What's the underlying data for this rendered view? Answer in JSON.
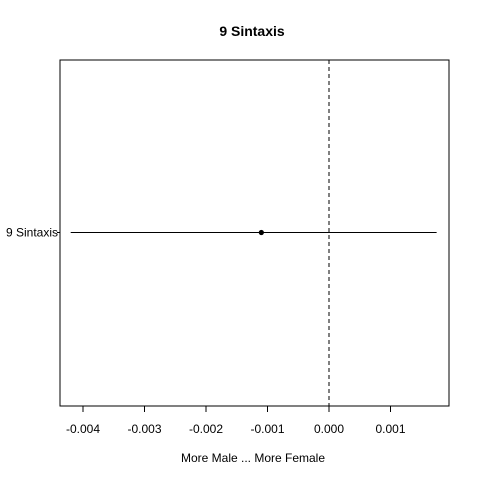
{
  "chart_data": {
    "type": "scatter",
    "title": "9 Sintaxis",
    "xlabel": "More Male ... More Female",
    "ylabel": "",
    "xlim": [
      -0.0044,
      0.002
    ],
    "x_ticks": [
      -0.004,
      -0.003,
      -0.002,
      -0.001,
      0.0,
      0.001
    ],
    "x_tick_labels": [
      "-0.004",
      "-0.003",
      "-0.002",
      "-0.001",
      "0.000",
      "0.001"
    ],
    "reference_line": {
      "x": 0.0,
      "style": "dashed"
    },
    "grid": false,
    "legend": "none",
    "categories": [
      "9 Sintaxis"
    ],
    "points": [
      {
        "label": "9 Sintaxis",
        "estimate": -0.0011,
        "ci_low": -0.0042,
        "ci_high": 0.00175
      }
    ]
  }
}
